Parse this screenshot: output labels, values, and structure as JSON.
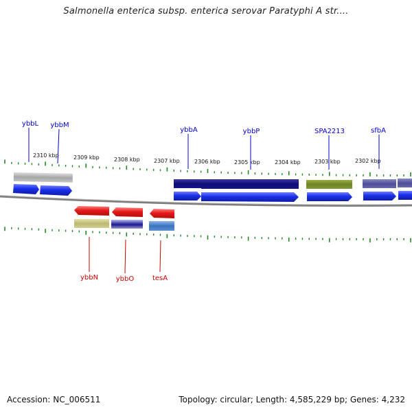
{
  "title": "Salmonella enterica subsp. enterica serovar Paratyphi A str....",
  "footer": {
    "accession": "Accession: NC_006511",
    "stats": "Topology: circular; Length: 4,585,229 bp; Genes: 4,232"
  },
  "colors": {
    "upper_label": "#0000cc",
    "lower_label": "#cc0000",
    "tick": "#1f8a1f",
    "backbone": "#8a8a8a",
    "forward_cds": "#1a2fe8",
    "reverse_cds": "#e51a1a"
  },
  "scale_labels": [
    "2310 kbp",
    "2309 kbp",
    "2308 kbp",
    "2307 kbp",
    "2306 kbp",
    "2305 kbp",
    "2304 kbp",
    "2303 kbp",
    "2302 kbp"
  ],
  "upper_genes": [
    "ybbL",
    "ybbM",
    "ybbA",
    "ybbP",
    "SPA2213",
    "sfbA"
  ],
  "lower_genes": [
    "ybbN",
    "ybbO",
    "tesA"
  ]
}
